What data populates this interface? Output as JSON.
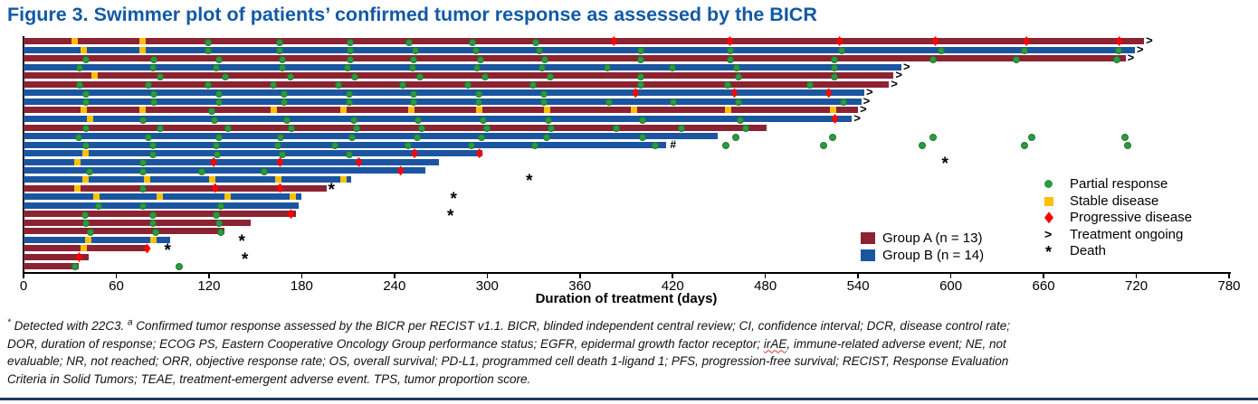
{
  "title": "Figure 3. Swimmer plot of patients’ confirmed tumor response as assessed by the BICR",
  "chart_data": {
    "type": "bar",
    "subtype": "swimmer",
    "xlabel": "Duration of treatment (days)",
    "xlim": [
      0,
      780
    ],
    "x_ticks": [
      0,
      60,
      120,
      180,
      240,
      300,
      360,
      420,
      480,
      540,
      600,
      660,
      720,
      780
    ],
    "groups": [
      {
        "id": "A",
        "label": "Group A (n = 13)",
        "color": "#8B2333"
      },
      {
        "id": "B",
        "label": "Group B (n = 14)",
        "color": "#1B55A0"
      }
    ],
    "marker_legend": [
      {
        "type": "circle",
        "label": "Partial response",
        "color": "#2D9A41"
      },
      {
        "type": "square",
        "label": "Stable disease",
        "color": "#FFC000"
      },
      {
        "type": "diamond",
        "label": "Progressive disease",
        "color": "#FE0000"
      },
      {
        "type": "gt",
        "label": "Treatment ongoing",
        "color": "#000000"
      },
      {
        "type": "asterisk",
        "label": "Death",
        "color": "#000000"
      }
    ],
    "patients": [
      {
        "group": "A",
        "duration": 725,
        "ongoing": true,
        "sd": [
          33,
          77
        ],
        "pr": [
          119,
          165,
          211,
          249,
          290,
          331
        ],
        "pd": [
          382,
          457,
          528,
          590,
          649,
          709
        ],
        "death": null,
        "hash": false
      },
      {
        "group": "B",
        "duration": 719,
        "ongoing": true,
        "sd": [
          39,
          77
        ],
        "pr": [
          119,
          165,
          211,
          253,
          292,
          333,
          399,
          457,
          529,
          593,
          647,
          708
        ],
        "pd": [],
        "death": null,
        "hash": false
      },
      {
        "group": "A",
        "duration": 713,
        "ongoing": true,
        "sd": [],
        "pr": [
          40,
          84,
          126,
          167,
          211,
          252,
          295,
          337,
          399,
          457,
          524,
          588,
          642,
          707
        ],
        "pd": [],
        "death": null,
        "hash": false
      },
      {
        "group": "B",
        "duration": 568,
        "ongoing": true,
        "sd": [],
        "pr": [
          36,
          83,
          124,
          167,
          209,
          251,
          293,
          335,
          377,
          419,
          461,
          524
        ],
        "pd": [],
        "death": null,
        "hash": false
      },
      {
        "group": "A",
        "duration": 563,
        "ongoing": true,
        "sd": [
          46
        ],
        "pr": [
          88,
          130,
          172,
          214,
          256,
          298,
          340,
          399,
          462,
          524
        ],
        "pd": [],
        "death": null,
        "hash": false
      },
      {
        "group": "A",
        "duration": 560,
        "ongoing": true,
        "sd": [],
        "pr": [
          36,
          80,
          119,
          161,
          203,
          245,
          287,
          329,
          399,
          455,
          508
        ],
        "pd": [],
        "death": null,
        "hash": false
      },
      {
        "group": "B",
        "duration": 544,
        "ongoing": true,
        "sd": [],
        "pr": [
          40,
          84,
          126,
          168,
          210,
          252,
          294,
          336
        ],
        "pd": [
          396,
          460,
          521
        ],
        "death": null,
        "hash": false
      },
      {
        "group": "B",
        "duration": 542,
        "ongoing": true,
        "sd": [],
        "pr": [
          40,
          84,
          126,
          168,
          210,
          252,
          294,
          336,
          378,
          420,
          462,
          530
        ],
        "pd": [],
        "death": null,
        "hash": false
      },
      {
        "group": "A",
        "duration": 540,
        "ongoing": true,
        "sd": [
          39,
          77,
          162,
          207,
          251,
          295,
          339,
          395,
          456,
          524
        ],
        "pr": [
          121
        ],
        "pd": [],
        "death": null,
        "hash": false
      },
      {
        "group": "B",
        "duration": 536,
        "ongoing": true,
        "sd": [
          43
        ],
        "pr": [
          77,
          123,
          170,
          213,
          255,
          297,
          339,
          400,
          463
        ],
        "pd": [
          525
        ],
        "death": null,
        "hash": false
      },
      {
        "group": "A",
        "duration": 481,
        "ongoing": false,
        "sd": [],
        "pr": [
          40,
          88,
          132,
          173,
          215,
          257,
          299,
          341,
          383,
          425,
          467
        ],
        "pd": [],
        "death": null,
        "hash": false
      },
      {
        "group": "B",
        "duration": 449,
        "ongoing": false,
        "sd": [],
        "pr": [
          35,
          80,
          126,
          166,
          212,
          254,
          296,
          338,
          400,
          460,
          523,
          588,
          652,
          712
        ],
        "pd": [],
        "death": null,
        "hash": false
      },
      {
        "group": "B",
        "duration": 416,
        "ongoing": false,
        "sd": [],
        "pr": [
          40,
          83,
          124,
          164,
          201,
          248,
          289,
          330,
          408,
          454,
          517,
          581,
          647,
          714
        ],
        "pd": [],
        "death": null,
        "hash": true
      },
      {
        "group": "B",
        "duration": 297,
        "ongoing": false,
        "sd": [
          40
        ],
        "pr": [
          83,
          125,
          167,
          210
        ],
        "pd": [
          253,
          295
        ],
        "death": null,
        "hash": false
      },
      {
        "group": "B",
        "duration": 269,
        "ongoing": false,
        "sd": [
          35
        ],
        "pr": [
          77
        ],
        "pd": [
          123,
          166,
          217
        ],
        "death": 597,
        "hash": false
      },
      {
        "group": "B",
        "duration": 260,
        "ongoing": false,
        "sd": [],
        "pr": [
          42,
          77,
          115,
          155
        ],
        "pd": [
          244
        ],
        "death": null,
        "hash": false
      },
      {
        "group": "B",
        "duration": 212,
        "ongoing": false,
        "sd": [
          40,
          80,
          122,
          165,
          207
        ],
        "pr": [],
        "pd": [],
        "death": 328,
        "hash": false
      },
      {
        "group": "A",
        "duration": 196,
        "ongoing": false,
        "sd": [
          35
        ],
        "pr": [
          77
        ],
        "pd": [
          124,
          166
        ],
        "death": 200,
        "hash": false
      },
      {
        "group": "B",
        "duration": 180,
        "ongoing": false,
        "sd": [
          47,
          88,
          132,
          174
        ],
        "pr": [],
        "pd": [],
        "death": 279,
        "hash": false
      },
      {
        "group": "B",
        "duration": 178,
        "ongoing": false,
        "sd": [],
        "pr": [
          48,
          77,
          127
        ],
        "pd": [],
        "death": null,
        "hash": false
      },
      {
        "group": "A",
        "duration": 176,
        "ongoing": false,
        "sd": [],
        "pr": [
          39,
          83,
          124
        ],
        "pd": [
          173
        ],
        "death": 277,
        "hash": false
      },
      {
        "group": "A",
        "duration": 147,
        "ongoing": false,
        "sd": [],
        "pr": [
          40,
          83,
          126
        ],
        "pd": [],
        "death": null,
        "hash": false
      },
      {
        "group": "A",
        "duration": 130,
        "ongoing": false,
        "sd": [],
        "pr": [
          43,
          85,
          127
        ],
        "pd": [],
        "death": null,
        "hash": false
      },
      {
        "group": "B",
        "duration": 95,
        "ongoing": false,
        "sd": [
          42,
          84
        ],
        "pr": [],
        "pd": [],
        "death": 142,
        "hash": false
      },
      {
        "group": "A",
        "duration": 81,
        "ongoing": false,
        "sd": [
          39
        ],
        "pr": [],
        "pd": [
          80
        ],
        "death": 94,
        "hash": false
      },
      {
        "group": "A",
        "duration": 42,
        "ongoing": false,
        "sd": [],
        "pr": [],
        "pd": [
          36
        ],
        "death": 144,
        "hash": false
      },
      {
        "group": "A",
        "duration": 36,
        "ongoing": false,
        "sd": [],
        "pr": [
          33,
          100
        ],
        "pd": [],
        "death": null,
        "hash": false
      }
    ]
  },
  "footnote": {
    "sup1": "*",
    "seg1": " Detected with 22C3. ",
    "sup2": "a",
    "seg2": " Confirmed tumor response assessed by the BICR per RECIST v1.1. BICR, blinded independent central review; CI, confidence interval; DCR, disease control rate;",
    "line2_pre": "DOR, duration of response; ECOG PS, Eastern Cooperative Oncology Group performance status; EGFR, epidermal growth factor receptor; ",
    "irae": "irAE",
    "line2_post": ", immune-related adverse event; NE, not",
    "line3": "evaluable; NR, not reached; ORR, objective response rate; OS, overall survival; PD-L1, programmed cell death 1-ligand 1; PFS, progression-free survival; RECIST, Response Evaluation",
    "line4": "Criteria in Solid Tumors; TEAE, treatment-emergent adverse event. TPS, tumor proportion score."
  },
  "colors": {
    "title": "#1259A6",
    "axis": "#000000",
    "bottom_rule": "#1F3864",
    "wavy_underline": "#E03030"
  }
}
